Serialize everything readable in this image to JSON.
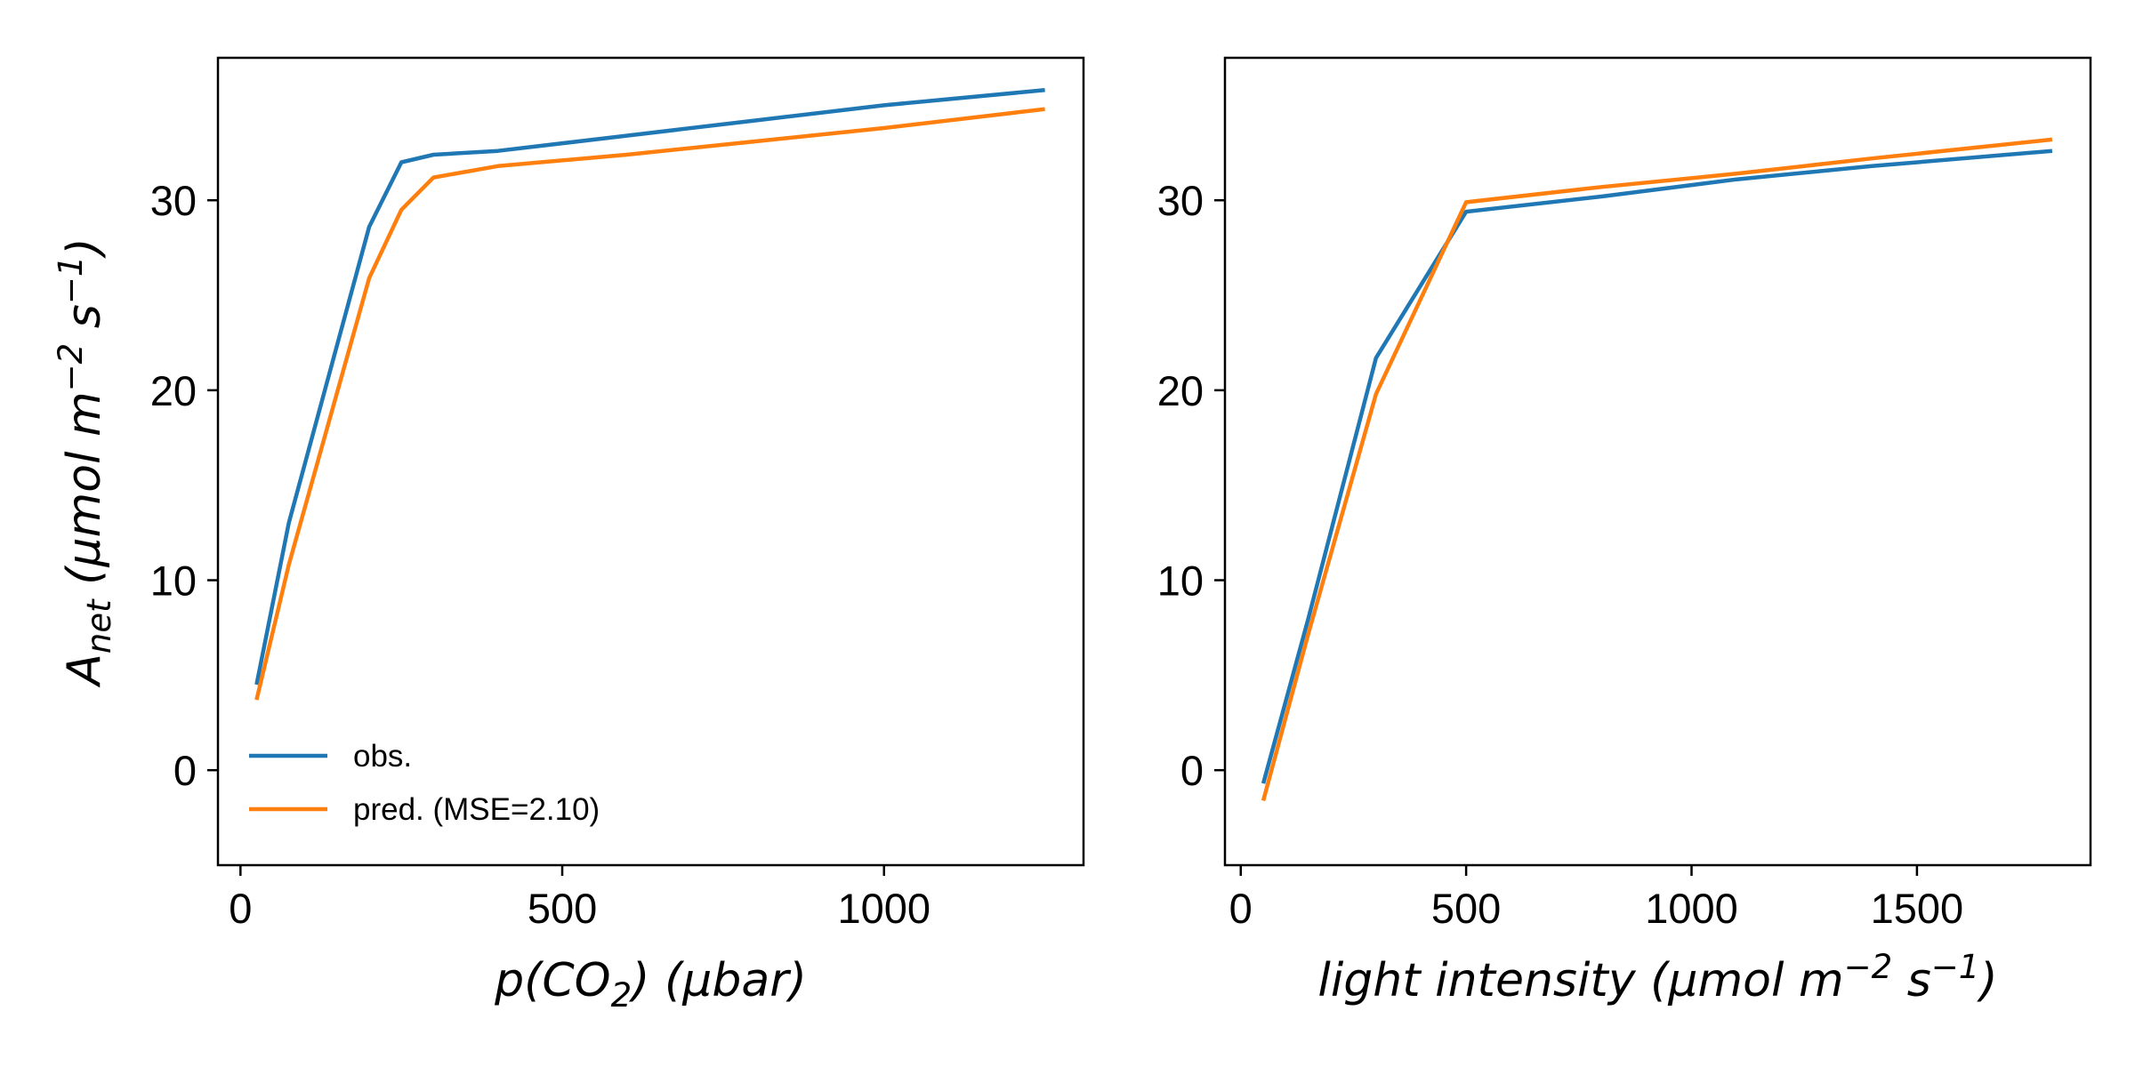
{
  "chart_data": [
    {
      "type": "line",
      "xlabel": "p(CO2) (μbar)",
      "ylabel": "Anet (μmol m−2 s−1)",
      "xlim": [
        -35,
        1310
      ],
      "ylim": [
        -5,
        37.5
      ],
      "xticks": [
        0,
        500,
        1000
      ],
      "yticks": [
        0,
        10,
        20,
        30
      ],
      "grid": false,
      "legend_position": "lower-left",
      "series": [
        {
          "name": "obs.",
          "color": "#1f77b4",
          "x": [
            25,
            75,
            200,
            250,
            300,
            400,
            600,
            800,
            1000,
            1250
          ],
          "y": [
            4.5,
            13.0,
            28.6,
            32.0,
            32.4,
            32.6,
            33.4,
            34.2,
            35.0,
            35.8
          ]
        },
        {
          "name": "pred. (MSE=2.10)",
          "color": "#ff7f0e",
          "x": [
            25,
            75,
            200,
            250,
            300,
            400,
            600,
            800,
            1000,
            1250
          ],
          "y": [
            3.7,
            10.8,
            25.9,
            29.5,
            31.2,
            31.8,
            32.4,
            33.1,
            33.8,
            34.8
          ]
        }
      ]
    },
    {
      "type": "line",
      "xlabel": "light intensity (μmol m−2 s−1)",
      "ylabel": "",
      "xlim": [
        -35,
        1885
      ],
      "ylim": [
        -5,
        37.5
      ],
      "xticks": [
        0,
        500,
        1000,
        1500
      ],
      "yticks": [
        0,
        10,
        20,
        30
      ],
      "grid": false,
      "series": [
        {
          "name": "obs.",
          "color": "#1f77b4",
          "x": [
            50,
            150,
            300,
            500,
            800,
            1100,
            1400,
            1800
          ],
          "y": [
            -0.7,
            8.0,
            21.7,
            29.4,
            30.2,
            31.1,
            31.8,
            32.6
          ]
        },
        {
          "name": "pred. (MSE=2.10)",
          "color": "#ff7f0e",
          "x": [
            50,
            150,
            300,
            500,
            800,
            1100,
            1400,
            1800
          ],
          "y": [
            -1.6,
            7.2,
            19.8,
            29.9,
            30.7,
            31.4,
            32.2,
            33.2
          ]
        }
      ]
    }
  ]
}
